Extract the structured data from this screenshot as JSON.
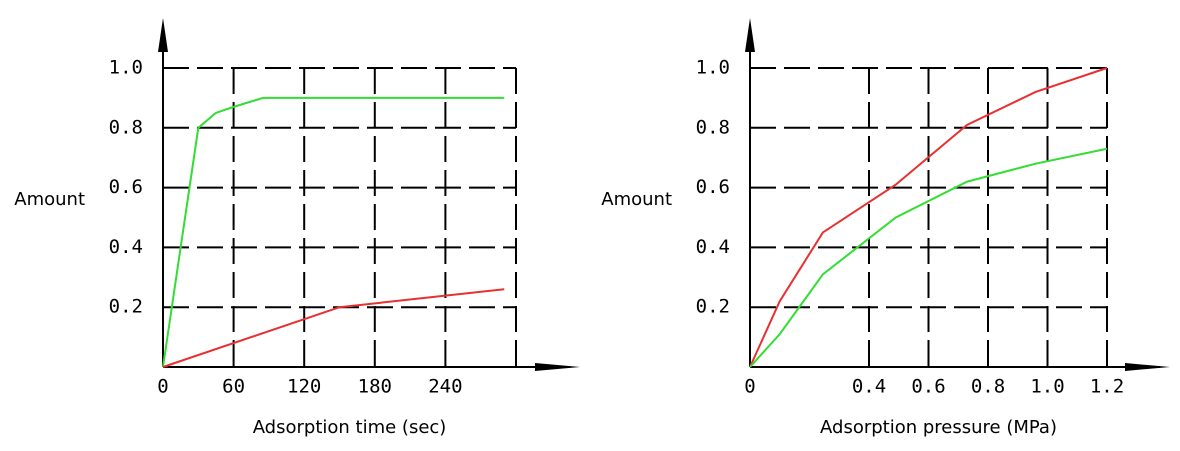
{
  "chart_data": [
    {
      "type": "line",
      "y_label": "Amount",
      "x_label": "Adsorption time (sec)",
      "xlim": [
        0,
        300
      ],
      "ylim": [
        0,
        1
      ],
      "xticks": [
        0,
        60,
        120,
        180,
        240
      ],
      "yticks": [
        0.2,
        0.4,
        0.6,
        0.8,
        {
          "value": 1,
          "label": "1.0"
        }
      ],
      "grid": true,
      "series": [
        {
          "color": "#33dd33",
          "x": [
            0,
            30,
            45,
            60,
            85,
            290
          ],
          "values": [
            0,
            0.8,
            0.85,
            0.87,
            0.9,
            0.9
          ]
        },
        {
          "color": "#e83030",
          "x": [
            0,
            150,
            290
          ],
          "values": [
            0,
            0.2,
            0.26
          ]
        }
      ]
    },
    {
      "type": "line",
      "y_label": "Amount",
      "x_label": "Adsorption pressure (MPa)",
      "xlim": [
        0,
        1.2
      ],
      "ylim": [
        0,
        1
      ],
      "xticks": [
        0,
        0.4,
        0.6,
        0.8,
        {
          "value": 1,
          "label": "1.0"
        },
        1.2
      ],
      "yticks": [
        0.2,
        0.4,
        0.6,
        0.8,
        {
          "value": 1,
          "label": "1.0"
        }
      ],
      "grid": true,
      "series": [
        {
          "color": "#e83030",
          "x": [
            0,
            0.1,
            0.245,
            0.49,
            0.73,
            0.96,
            1.2
          ],
          "values": [
            0,
            0.22,
            0.45,
            0.61,
            0.81,
            0.92,
            1
          ]
        },
        {
          "color": "#33dd33",
          "x": [
            0,
            0.1,
            0.245,
            0.49,
            0.73,
            0.96,
            1.2
          ],
          "values": [
            0,
            0.11,
            0.31,
            0.5,
            0.62,
            0.68,
            0.73
          ]
        }
      ]
    }
  ]
}
